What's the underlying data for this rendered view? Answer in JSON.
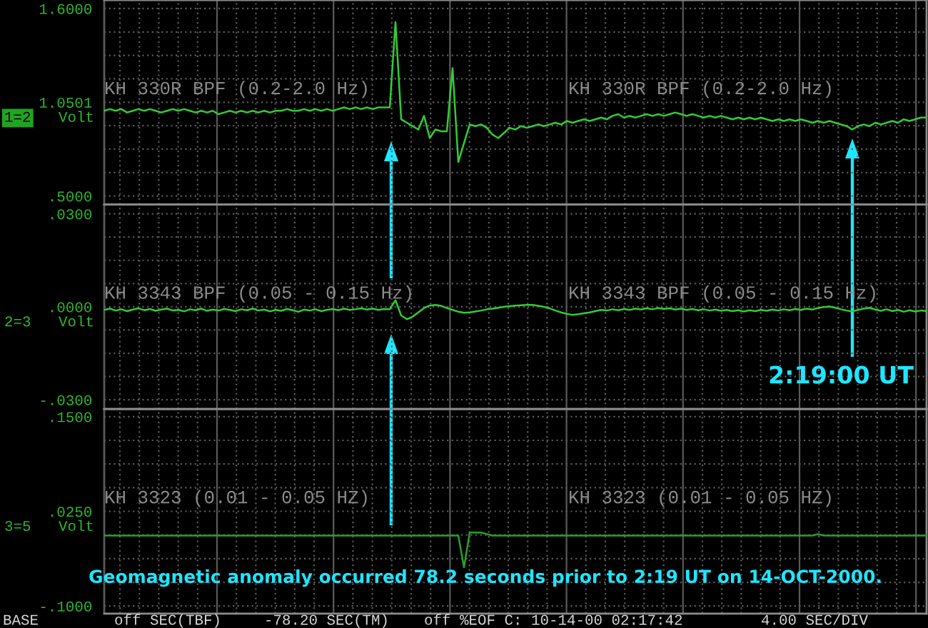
{
  "chart_data": [
    {
      "type": "line",
      "grid": true,
      "tick_labels": "y",
      "ylabel": "Volt",
      "color": "#33cc33",
      "ylim": [
        0.45,
        1.65
      ],
      "yticks": [
        {
          "value": 1.6,
          "label": "1.6000"
        },
        {
          "value": 1.0501,
          "label": "1.0501"
        },
        {
          "value": 0.5,
          "label": ".5000"
        }
      ],
      "annotations": [
        "1=2",
        "KH 330R BPF (0.2-2.0 Hz)",
        "KH 330R BPF (0.2-2.0 Hz)"
      ],
      "categories": [
        null,
        null,
        null,
        null,
        null,
        null,
        null,
        null,
        null,
        null,
        null,
        null,
        null,
        null,
        null,
        null,
        null,
        null,
        null,
        null,
        null,
        null,
        null,
        null,
        null,
        null,
        null,
        null,
        null,
        null,
        null,
        null,
        null,
        null,
        null,
        null,
        null,
        null,
        null,
        null,
        null,
        null,
        null,
        null,
        null,
        null,
        null,
        null,
        null,
        null,
        null,
        null,
        null,
        null,
        null,
        null,
        null,
        null,
        null,
        null,
        null,
        null,
        null,
        null,
        null,
        null,
        null,
        null,
        null,
        null,
        null,
        null,
        null,
        null,
        null,
        null,
        null,
        null,
        null,
        null,
        null,
        null,
        null,
        null,
        null,
        null,
        null,
        null,
        null,
        null,
        null,
        null,
        null,
        null,
        null,
        null,
        null,
        null,
        null,
        null,
        null,
        null,
        null,
        null,
        null,
        null,
        null,
        null,
        null,
        null,
        null,
        null,
        null,
        null,
        null,
        null,
        null,
        null,
        null,
        null,
        null,
        null,
        null,
        null,
        null,
        null,
        null,
        null,
        null,
        null,
        null,
        null,
        null,
        null,
        null,
        null,
        null,
        null,
        null,
        null,
        null,
        null,
        null,
        null,
        null
      ],
      "values": [
        1.0,
        1.01,
        1.0,
        1.01,
        0.99,
        1.0,
        1.01,
        1.0,
        1.01,
        1.0,
        0.99,
        1.0,
        1.01,
        1.0,
        1.01,
        1.0,
        0.99,
        1.0,
        0.99,
        1.0,
        0.98,
        0.99,
        1.0,
        0.99,
        1.0,
        0.99,
        1.0,
        0.99,
        1.0,
        0.99,
        1.0,
        1.0,
        1.01,
        1.0,
        1.0,
        1.01,
        1.0,
        1.01,
        1.0,
        1.01,
        1.0,
        1.01,
        1.02,
        1.01,
        1.02,
        1.01,
        1.02,
        1.01,
        1.02,
        1.02,
        1.02,
        1.52,
        0.95,
        0.93,
        0.91,
        0.89,
        0.97,
        0.84,
        0.89,
        0.88,
        0.88,
        1.25,
        0.7,
        0.81,
        0.92,
        0.91,
        0.92,
        0.9,
        0.86,
        0.84,
        0.87,
        0.9,
        0.89,
        0.91,
        0.9,
        0.91,
        0.92,
        0.91,
        0.92,
        0.93,
        0.92,
        0.94,
        0.93,
        0.94,
        0.95,
        0.94,
        0.95,
        0.96,
        0.95,
        0.97,
        0.98,
        0.96,
        0.97,
        0.96,
        0.97,
        0.98,
        0.97,
        0.98,
        0.97,
        0.98,
        0.99,
        0.98,
        0.97,
        0.98,
        0.97,
        0.96,
        0.97,
        0.96,
        0.97,
        0.96,
        0.95,
        0.96,
        0.95,
        0.96,
        0.95,
        0.96,
        0.95,
        0.94,
        0.95,
        0.94,
        0.95,
        0.94,
        0.95,
        0.94,
        0.93,
        0.94,
        0.93,
        0.94,
        0.93,
        0.92,
        0.91,
        0.89,
        0.91,
        0.92,
        0.91,
        0.93,
        0.92,
        0.93,
        0.94,
        0.93,
        0.95,
        0.94,
        0.95,
        0.96,
        0.96
      ]
    },
    {
      "type": "line",
      "grid": true,
      "tick_labels": "y",
      "ylabel": "Volt",
      "color": "#33cc33",
      "ylim": [
        -0.033,
        0.033
      ],
      "yticks": [
        {
          "value": 0.03,
          "label": ".0300"
        },
        {
          "value": 0,
          "label": ".0000"
        },
        {
          "value": -0.03,
          "label": "-.0300"
        }
      ],
      "annotations": [
        "2=3",
        "KH 3343 BPF (0.05 - 0.15 Hz)",
        "KH 3343 BPF (0.05 - 0.15 Hz)",
        "2:19:00 UT"
      ],
      "categories": [
        null,
        null,
        null,
        null,
        null,
        null,
        null,
        null,
        null,
        null,
        null,
        null,
        null,
        null,
        null,
        null,
        null,
        null,
        null,
        null,
        null,
        null,
        null,
        null,
        null,
        null,
        null,
        null,
        null,
        null,
        null,
        null,
        null,
        null,
        null,
        null,
        null,
        null,
        null,
        null,
        null,
        null,
        null,
        null,
        null,
        null,
        null,
        null,
        null,
        null,
        null,
        null,
        null,
        null,
        null,
        null,
        null,
        null,
        null,
        null,
        null,
        null,
        null,
        null,
        null,
        null,
        null,
        null,
        null,
        null,
        null,
        null,
        null,
        null,
        null,
        null,
        null,
        null,
        null,
        null,
        null,
        null,
        null,
        null,
        null,
        null,
        null,
        null,
        null,
        null,
        null,
        null,
        null,
        null,
        null,
        null,
        null,
        null,
        null,
        null,
        null,
        null,
        null,
        null,
        null,
        null,
        null,
        null,
        null,
        null,
        null,
        null,
        null,
        null,
        null,
        null,
        null,
        null,
        null,
        null,
        null,
        null,
        null,
        null,
        null,
        null,
        null,
        null,
        null,
        null,
        null,
        null,
        null,
        null,
        null,
        null,
        null,
        null,
        null,
        null,
        null,
        null,
        null,
        null,
        null
      ],
      "values": [
        -0.001,
        -0.0006,
        -0.0012,
        -0.0008,
        -0.0014,
        -0.0009,
        -0.0005,
        -0.0011,
        -0.0007,
        -0.0013,
        -0.0009,
        -0.0006,
        -0.0012,
        -0.001,
        -0.0015,
        -0.0008,
        -0.0011,
        -0.0006,
        -0.0013,
        -0.0009,
        -0.0012,
        -0.0007,
        -0.001,
        -0.0014,
        -0.0008,
        -0.0011,
        -0.0006,
        -0.0012,
        -0.0009,
        -0.0015,
        -0.001,
        -0.0013,
        -0.0007,
        -0.0011,
        -0.0016,
        -0.0009,
        -0.0012,
        -0.0008,
        -0.0014,
        -0.001,
        -0.0007,
        -0.0011,
        -0.0006,
        -0.001,
        -0.0008,
        -0.0005,
        -0.0009,
        -0.0006,
        -0.001,
        -0.0007,
        -0.0008,
        0.0021,
        -0.0028,
        -0.004,
        -0.0032,
        -0.0018,
        -0.0004,
        0.0004,
        0.0006,
        0.0003,
        -0.0004,
        -0.001,
        -0.0016,
        -0.0019,
        -0.0018,
        -0.0015,
        -0.0012,
        -0.0008,
        -0.0006,
        -0.0003,
        0.0,
        0.0002,
        0.0004,
        0.0005,
        0.0006,
        0.0006,
        0.0003,
        0.0,
        -0.0005,
        -0.0012,
        -0.0018,
        -0.0023,
        -0.0026,
        -0.0024,
        -0.0021,
        -0.0018,
        -0.0014,
        -0.001,
        -0.0012,
        -0.0008,
        -0.0011,
        -0.0007,
        -0.001,
        -0.0006,
        -0.0009,
        -0.0005,
        -0.0008,
        -0.0004,
        -0.0007,
        -0.0005,
        -0.0009,
        -0.0006,
        -0.001,
        -0.0007,
        -0.0011,
        -0.0008,
        -0.0012,
        -0.0009,
        -0.0013,
        -0.001,
        -0.0014,
        -0.0011,
        -0.0015,
        -0.0011,
        -0.0014,
        -0.001,
        -0.0013,
        -0.0009,
        -0.0012,
        -0.0008,
        -0.0011,
        -0.0007,
        -0.001,
        -0.0006,
        -0.0009,
        -0.0004,
        -0.0001,
        0.0001,
        -0.0003,
        -0.0008,
        -0.0012,
        -0.0015,
        -0.001,
        -0.0006,
        -0.0003,
        -0.0009,
        -0.0013,
        -0.0008,
        -0.0014,
        -0.001,
        -0.0016,
        -0.0011,
        -0.0015,
        -0.0012,
        -0.0014
      ]
    },
    {
      "type": "line",
      "grid": true,
      "tick_labels": "y",
      "ylabel": "Volt",
      "color": "#2aa02a",
      "ylim": [
        -0.11,
        0.16
      ],
      "yticks": [
        {
          "value": 0.15,
          "label": ".1500"
        },
        {
          "value": 0.025,
          "label": ".0250"
        },
        {
          "value": -0.1,
          "label": "-.1000"
        }
      ],
      "annotations": [
        "3=5",
        "KH 3323 (0.01 - 0.05 HZ)",
        "KH 3323 (0.01 - 0.05 HZ)",
        "Geomagnetic anomaly occurred 78.2 seconds prior to 2:19 UT on 14-OCT-2000.",
        "BASE",
        "off SEC(TBF)",
        "-78.20 SEC(TM)",
        "off %EOF C: 10-14-00 02:17:42",
        "4.00 SEC/DIV"
      ],
      "categories": [
        null,
        null,
        null,
        null,
        null,
        null,
        null,
        null,
        null,
        null,
        null,
        null,
        null,
        null,
        null,
        null,
        null,
        null,
        null,
        null,
        null,
        null,
        null,
        null,
        null,
        null,
        null,
        null,
        null,
        null,
        null,
        null,
        null,
        null,
        null,
        null,
        null,
        null,
        null,
        null,
        null,
        null,
        null,
        null,
        null,
        null,
        null,
        null,
        null,
        null,
        null,
        null,
        null,
        null,
        null,
        null,
        null,
        null,
        null,
        null,
        null,
        null,
        null,
        null,
        null,
        null,
        null,
        null,
        null,
        null,
        null,
        null,
        null,
        null,
        null,
        null,
        null,
        null,
        null,
        null,
        null,
        null,
        null,
        null,
        null,
        null,
        null,
        null,
        null,
        null,
        null,
        null,
        null,
        null,
        null,
        null,
        null,
        null,
        null,
        null,
        null,
        null,
        null,
        null,
        null,
        null,
        null,
        null,
        null,
        null,
        null,
        null,
        null,
        null,
        null,
        null,
        null,
        null,
        null,
        null,
        null,
        null,
        null,
        null,
        null,
        null,
        null,
        null,
        null,
        null,
        null,
        null,
        null,
        null,
        null,
        null,
        null,
        null,
        null,
        null,
        null,
        null,
        null,
        null,
        null
      ],
      "values": [
        -0.007,
        -0.007,
        -0.007,
        -0.007,
        -0.007,
        -0.007,
        -0.007,
        -0.007,
        -0.007,
        -0.007,
        -0.007,
        -0.007,
        -0.007,
        -0.007,
        -0.007,
        -0.007,
        -0.007,
        -0.007,
        -0.007,
        -0.007,
        -0.007,
        -0.007,
        -0.007,
        -0.007,
        -0.007,
        -0.007,
        -0.007,
        -0.007,
        -0.007,
        -0.007,
        -0.007,
        -0.007,
        -0.007,
        -0.007,
        -0.007,
        -0.007,
        -0.007,
        -0.007,
        -0.007,
        -0.007,
        -0.007,
        -0.007,
        -0.007,
        -0.007,
        -0.007,
        -0.007,
        -0.007,
        -0.007,
        -0.007,
        -0.007,
        -0.007,
        -0.007,
        -0.007,
        -0.007,
        -0.007,
        -0.007,
        -0.007,
        -0.007,
        -0.007,
        -0.007,
        -0.007,
        -0.007,
        -0.007,
        -0.049,
        -0.003,
        -0.003,
        -0.003,
        -0.005,
        -0.007,
        -0.007,
        -0.007,
        -0.007,
        -0.007,
        -0.007,
        -0.007,
        -0.007,
        -0.007,
        -0.007,
        -0.007,
        -0.007,
        -0.007,
        -0.007,
        -0.007,
        -0.007,
        -0.007,
        -0.007,
        -0.007,
        -0.007,
        -0.007,
        -0.007,
        -0.007,
        -0.007,
        -0.007,
        -0.007,
        -0.007,
        -0.007,
        -0.007,
        -0.007,
        -0.007,
        -0.007,
        -0.007,
        -0.007,
        -0.007,
        -0.007,
        -0.007,
        -0.007,
        -0.007,
        -0.007,
        -0.007,
        -0.007,
        -0.007,
        -0.007,
        -0.007,
        -0.007,
        -0.007,
        -0.007,
        -0.007,
        -0.007,
        -0.007,
        -0.007,
        -0.007,
        -0.007,
        -0.007,
        -0.007,
        -0.007,
        -0.005,
        -0.007,
        -0.007,
        -0.007,
        -0.007,
        -0.007,
        -0.007,
        -0.007,
        -0.007,
        -0.007,
        -0.007,
        -0.007,
        -0.007,
        -0.007,
        -0.007,
        -0.007,
        -0.007,
        -0.007,
        -0.007,
        -0.007
      ]
    }
  ]
}
